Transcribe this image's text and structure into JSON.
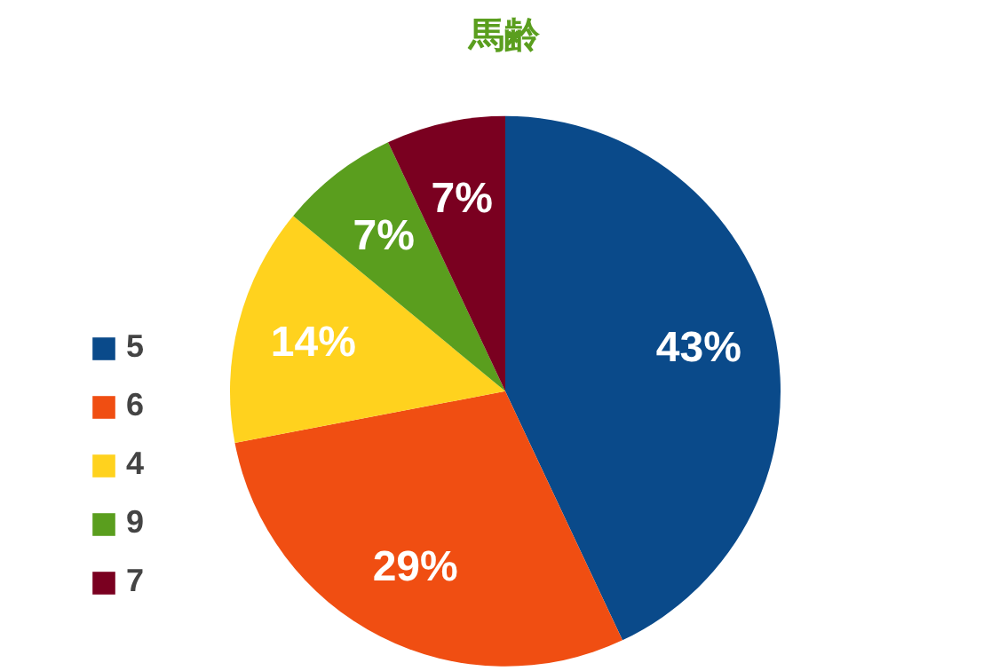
{
  "chart_data": {
    "type": "pie",
    "title": "馬齢",
    "categories": [
      "5",
      "6",
      "4",
      "9",
      "7"
    ],
    "values": [
      43,
      29,
      14,
      7,
      7
    ],
    "colors": [
      "#0a4a8a",
      "#f04e12",
      "#ffd21e",
      "#5a9e1e",
      "#7a0020"
    ],
    "value_labels": [
      "43%",
      "29%",
      "14%",
      "7%",
      "7%"
    ],
    "legend": "left"
  }
}
